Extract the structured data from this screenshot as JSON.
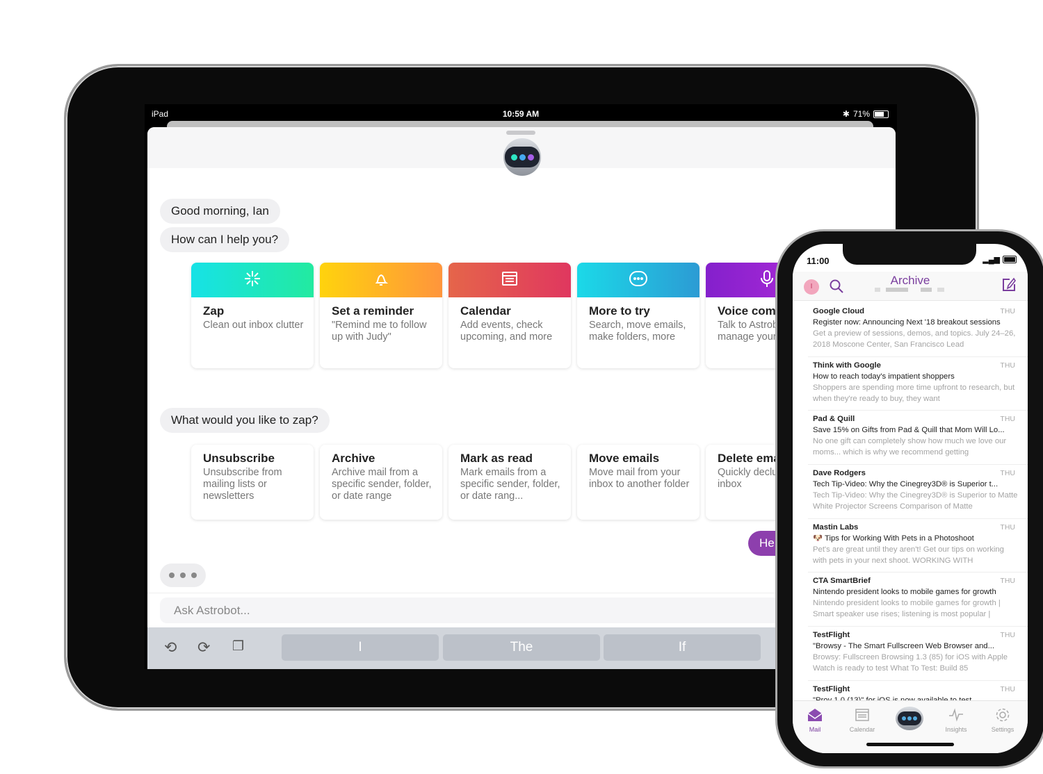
{
  "ipad": {
    "status": {
      "device": "iPad",
      "time": "10:59 AM",
      "battery": "71%",
      "battery_level": 0.71
    },
    "greeting": "Good morning, Ian",
    "prompt": "How can I help you?",
    "cards": [
      {
        "title": "Zap",
        "desc": "Clean out inbox clutter",
        "icon": "zap-icon",
        "colors": [
          "#17e2e6",
          "#22eaa0"
        ]
      },
      {
        "title": "Set a reminder",
        "desc": "\"Remind me to follow up with Judy\"",
        "icon": "bell-icon",
        "colors": [
          "#ffd30d",
          "#ff953c"
        ]
      },
      {
        "title": "Calendar",
        "desc": "Add events, check upcoming, and more",
        "icon": "calendar-icon",
        "colors": [
          "#e5654a",
          "#e0375f"
        ]
      },
      {
        "title": "More to try",
        "desc": "Search, move emails, make folders, more",
        "icon": "chat-dots-icon",
        "colors": [
          "#1bd9e8",
          "#2c9bd4"
        ]
      },
      {
        "title": "Voice comm",
        "desc": "Talk to Astrobot to manage your",
        "icon": "microphone-icon",
        "colors": [
          "#8420cc",
          "#b12bd9"
        ]
      }
    ],
    "zap_prompt": "What would you like to zap?",
    "zap_cards": [
      {
        "title": "Unsubscribe",
        "desc": "Unsubscribe from mailing lists or newsletters"
      },
      {
        "title": "Archive",
        "desc": "Archive mail from a specific sender, folder, or date range"
      },
      {
        "title": "Mark as read",
        "desc": "Mark emails from a specific sender, folder, or date rang..."
      },
      {
        "title": "Move emails",
        "desc": "Move mail from your inbox to another folder"
      },
      {
        "title": "Delete ema",
        "desc": "Quickly declu your inbox"
      }
    ],
    "user_bubble": "He",
    "input_placeholder": "Ask Astrobot...",
    "suggestions": [
      "I",
      "The",
      "If"
    ],
    "accent": "#8d3fad"
  },
  "iphone": {
    "status": {
      "time": "11:00"
    },
    "avatar_initial": "I",
    "title": "Archive",
    "emails": [
      {
        "sender": "Google Cloud",
        "day": "THU",
        "subject": "Register now: Announcing Next '18 breakout sessions",
        "preview": "Get a preview of sessions, demos, and topics. July 24–26, 2018 Moscone Center, San Francisco Lead"
      },
      {
        "sender": "Think with Google",
        "day": "THU",
        "subject": "How to reach today's impatient shoppers",
        "preview": "Shoppers are spending more time upfront to research, but when they're ready to buy, they want"
      },
      {
        "sender": "Pad & Quill",
        "day": "THU",
        "subject": "Save 15% on Gifts from Pad & Quill that Mom Will Lo...",
        "preview": "No one gift can completely show how much we love our moms... which is why we recommend getting"
      },
      {
        "sender": "Dave Rodgers",
        "day": "THU",
        "subject": "Tech Tip-Video: Why the Cinegrey3D®  is Superior t...",
        "preview": "Tech Tip-Video: Why the Cinegrey3D® is Superior to Matte White Projector Screens Comparison of Matte"
      },
      {
        "sender": "Mastin Labs",
        "day": "THU",
        "subject": "🐶 Tips for Working With Pets in a Photoshoot",
        "preview": "Pet's are great until they aren't! Get our tips on working with pets in your next shoot. WORKING WITH"
      },
      {
        "sender": "CTA SmartBrief",
        "day": "THU",
        "subject": "Nintendo president looks to mobile games for growth",
        "preview": "Nintendo president looks to mobile games for growth | Smart speaker use rises; listening is most popular |"
      },
      {
        "sender": "TestFlight",
        "day": "THU",
        "subject": "\"Browsy - The Smart Fullscreen Web Browser and...",
        "preview": "Browsy: Fullscreen Browsing 1.3 (85) for iOS with Apple Watch is ready to test What To Test: Build 85"
      },
      {
        "sender": "TestFlight",
        "day": "THU",
        "subject": "\"Prov 1.0 (13)\" for iOS is now available to test",
        "preview": ""
      }
    ],
    "tabs": [
      {
        "label": "Mail",
        "icon": "mail-icon",
        "active": true
      },
      {
        "label": "Calendar",
        "icon": "calendar-icon"
      },
      {
        "label": "Insights",
        "icon": "pulse-icon"
      },
      {
        "label": "Settings",
        "icon": "gear-icon"
      }
    ],
    "accent": "#7a3e9e"
  }
}
